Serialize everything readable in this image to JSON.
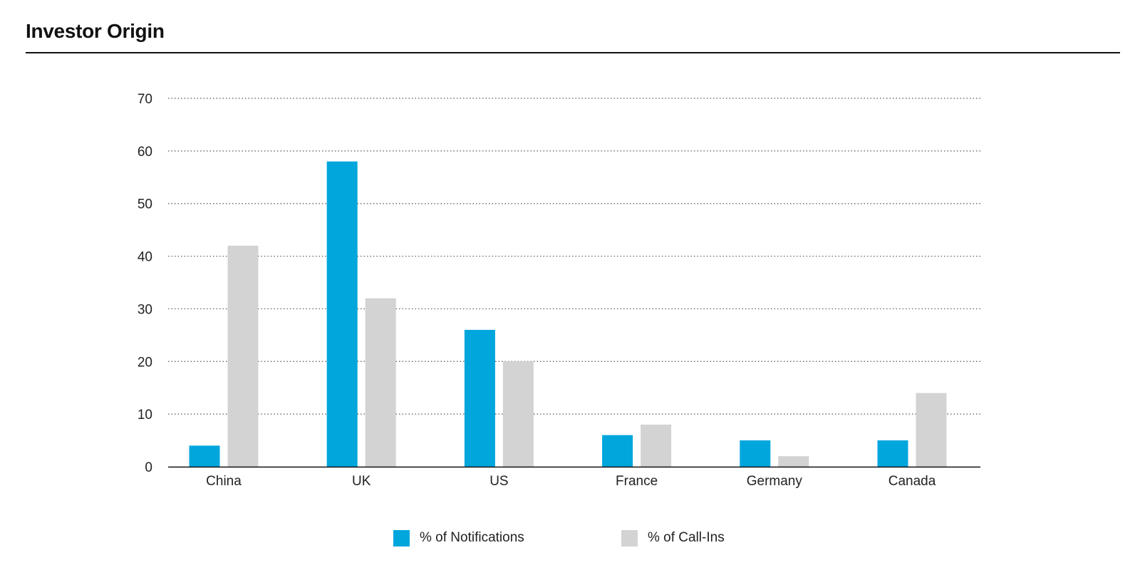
{
  "header": {
    "title": "Investor Origin"
  },
  "chart_data": {
    "type": "bar",
    "title": "Investor Origin",
    "xlabel": "",
    "ylabel": "",
    "ylim": [
      0,
      70
    ],
    "yticks": [
      0,
      10,
      20,
      30,
      40,
      50,
      60,
      70
    ],
    "grid": "horizontal-dotted",
    "legend_position": "bottom-center",
    "categories": [
      "China",
      "UK",
      "US",
      "France",
      "Germany",
      "Canada"
    ],
    "series": [
      {
        "name": "% of Notifications",
        "color": "#00a6dc",
        "values": [
          4,
          58,
          26,
          6,
          5,
          5
        ]
      },
      {
        "name": "% of Call-Ins",
        "color": "#d3d3d3",
        "values": [
          42,
          32,
          20,
          8,
          2,
          14
        ]
      }
    ]
  }
}
